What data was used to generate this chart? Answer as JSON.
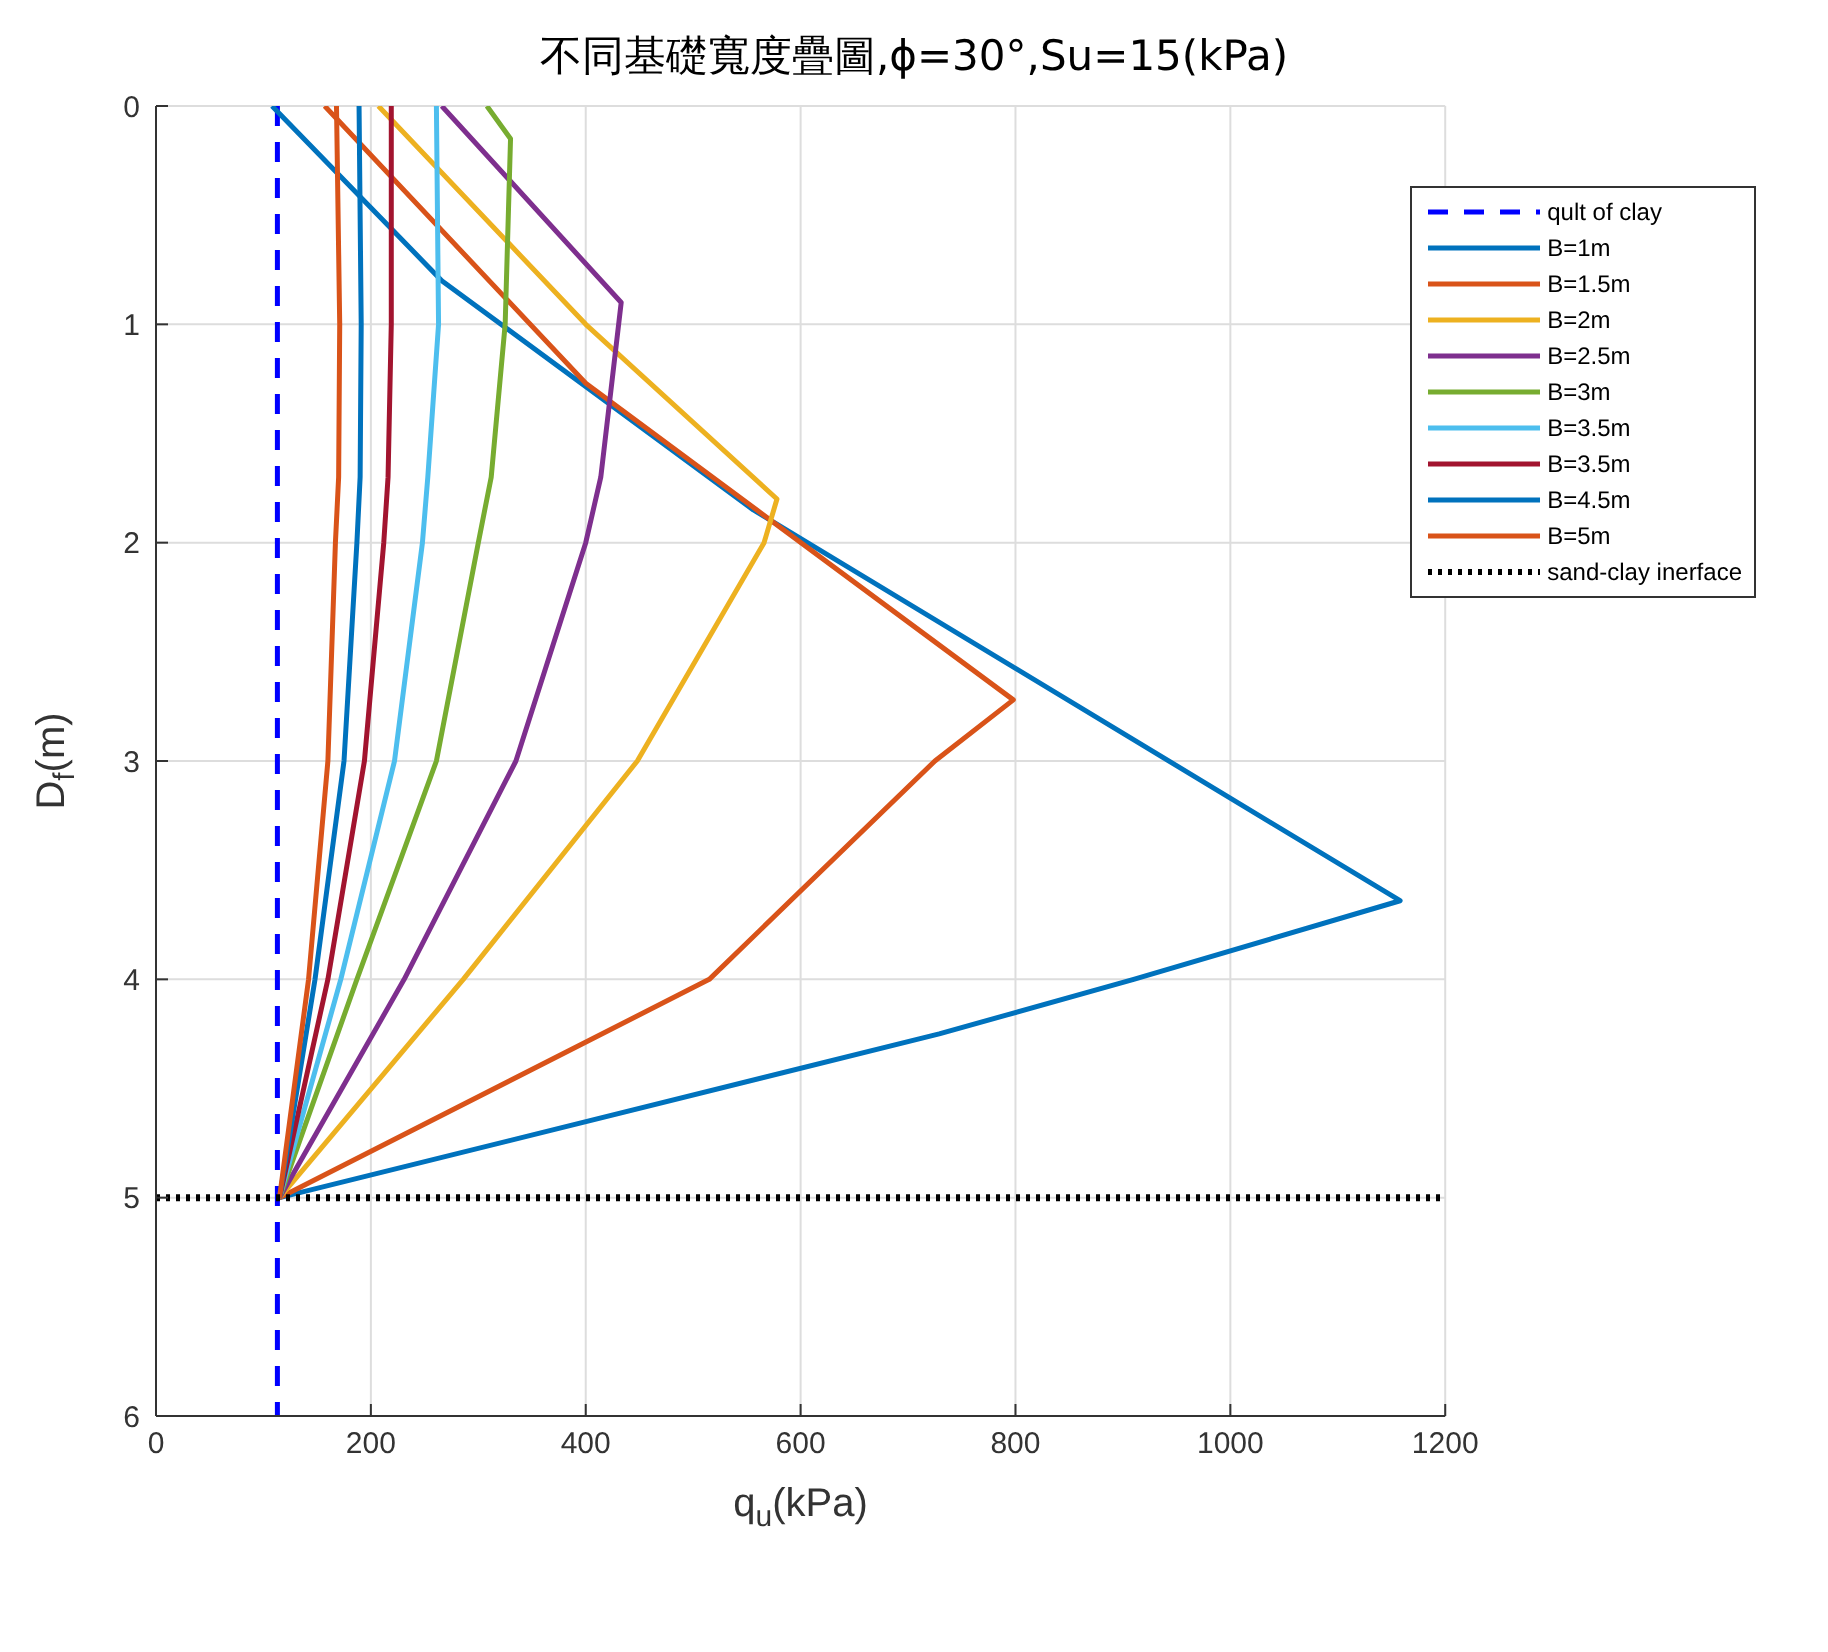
{
  "chart_data": {
    "type": "line",
    "title": "不同基礎寬度疊圖,ϕ=30°,Su=15(kPa)",
    "xlabel": "q$_{u}$(kPa)",
    "ylabel": "D$_{f}$(m)",
    "xlim": [
      0,
      1200
    ],
    "xticks": [
      0,
      200,
      400,
      600,
      800,
      1000,
      1200
    ],
    "ylim": [
      6,
      0
    ],
    "yticks": [
      0,
      1,
      2,
      3,
      4,
      5,
      6
    ],
    "grid": true,
    "legend": "top right",
    "line_style": "solid",
    "series": [
      {
        "name": "qult of clay",
        "color": "#0000ff",
        "line_style": "dashed",
        "x": [
          113,
          113
        ],
        "values": [
          0,
          6
        ]
      },
      {
        "name": "B=1m",
        "color": "#0072bd",
        "x": [
          108,
          266,
          556,
          1158,
          910,
          729,
          115
        ],
        "values": [
          0,
          0.8,
          1.85,
          3.64,
          4,
          4.25,
          5
        ]
      },
      {
        "name": "B=1.5m",
        "color": "#d95319",
        "x": [
          157,
          400,
          798,
          725,
          515,
          115
        ],
        "values": [
          0,
          1.27,
          2.72,
          3,
          4,
          5
        ]
      },
      {
        "name": "B=2m",
        "color": "#edb120",
        "x": [
          207,
          400,
          578,
          566,
          448,
          286,
          115
        ],
        "values": [
          0,
          1,
          1.8,
          2,
          3,
          4,
          5
        ]
      },
      {
        "name": "B=2.5m",
        "color": "#7e2f8e",
        "x": [
          266,
          433,
          414,
          400,
          335,
          231,
          115
        ],
        "values": [
          0,
          0.9,
          1.7,
          2,
          3,
          4,
          5
        ]
      },
      {
        "name": "B=3m",
        "color": "#77ac30",
        "x": [
          308,
          330,
          325,
          312,
          300,
          261,
          187,
          115
        ],
        "values": [
          0,
          0.15,
          1,
          1.7,
          2,
          3,
          4,
          5
        ]
      },
      {
        "name": "B=3.5m",
        "color": "#4dbeee",
        "x": [
          261,
          263,
          253,
          248,
          222,
          172,
          115
        ],
        "values": [
          0,
          1,
          1.7,
          2,
          3,
          4,
          5
        ]
      },
      {
        "name": "B=3.5m",
        "color": "#a2142f",
        "x": [
          219,
          219,
          216,
          212,
          194,
          160,
          115
        ],
        "values": [
          0,
          1,
          1.7,
          2,
          3,
          4,
          5
        ]
      },
      {
        "name": "B=4.5m",
        "color": "#0072bd",
        "x": [
          189,
          191,
          190,
          187,
          175,
          148,
          115
        ],
        "values": [
          0,
          1,
          1.7,
          2,
          3,
          4,
          5
        ]
      },
      {
        "name": "B=5m",
        "color": "#d95319",
        "x": [
          168,
          171,
          170,
          167,
          160,
          142,
          115
        ],
        "values": [
          0,
          1,
          1.7,
          2,
          3,
          4,
          5
        ]
      },
      {
        "name": "sand-clay inerface",
        "color": "#000000",
        "line_style": "dotted",
        "x": [
          0,
          1200
        ],
        "values": [
          5,
          5
        ]
      }
    ]
  }
}
